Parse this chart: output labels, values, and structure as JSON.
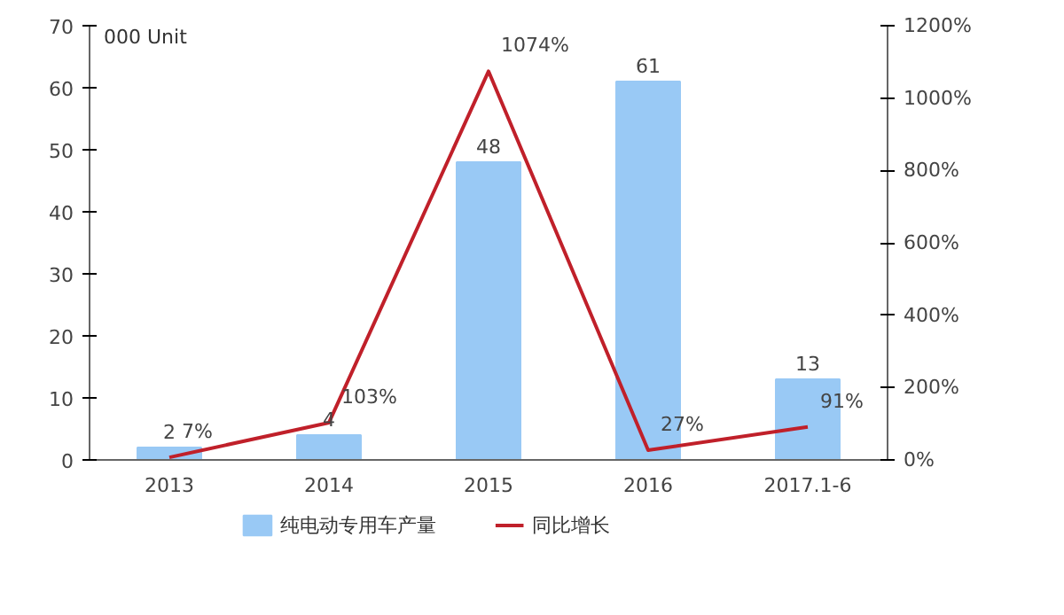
{
  "chart_data": {
    "type": "bar",
    "ylabel": "000 Unit",
    "categories": [
      "2013",
      "2014",
      "2015",
      "2016",
      "2017.1-6"
    ],
    "series": [
      {
        "name": "纯电动专用车产量",
        "color": "#99c9f5",
        "values": [
          2,
          4,
          48,
          61,
          13
        ],
        "value_labels": [
          "2",
          "4",
          "48",
          "61",
          "13"
        ]
      },
      {
        "name": "同比增长",
        "type": "line",
        "axis": "y2",
        "color": "#c0202a",
        "values": [
          7,
          103,
          1074,
          27,
          91
        ],
        "value_labels": [
          "7%",
          "103%",
          "1074%",
          "27%",
          "91%"
        ]
      }
    ],
    "ylim": [
      0,
      70
    ],
    "yticks": [
      0,
      10,
      20,
      30,
      40,
      50,
      60,
      70
    ],
    "y2lim": [
      0,
      1200
    ],
    "y2ticks": [
      {
        "value": 0,
        "label": "0%"
      },
      {
        "value": 200,
        "label": "200%"
      },
      {
        "value": 400,
        "label": "400%"
      },
      {
        "value": 600,
        "label": "600%"
      },
      {
        "value": 800,
        "label": "800%"
      },
      {
        "value": 1000,
        "label": "1000%"
      },
      {
        "value": 1200,
        "label": "1200%"
      }
    ],
    "grid": false,
    "legend": "bottom",
    "marker": "none",
    "line_style": "solid"
  }
}
